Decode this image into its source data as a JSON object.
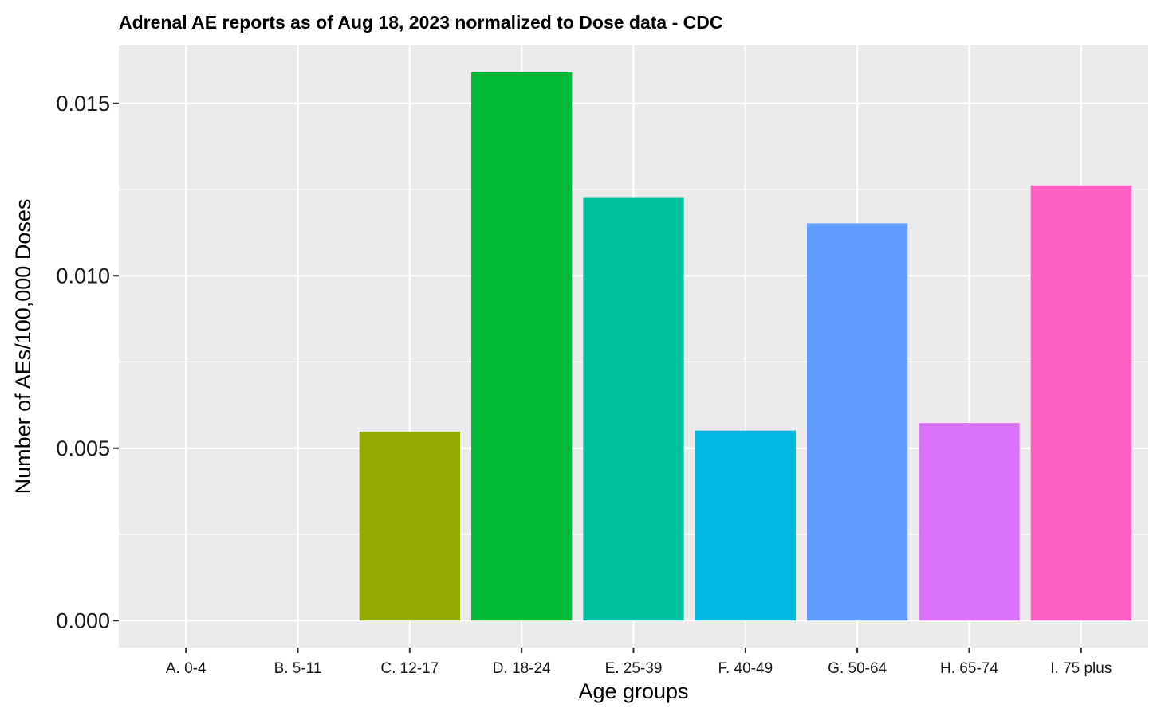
{
  "chart_data": {
    "type": "bar",
    "title": "Adrenal AE reports as of Aug 18, 2023 normalized to Dose data - CDC",
    "xlabel": "Age groups",
    "ylabel": "Number of AEs/100,000 Doses",
    "categories": [
      "A. 0-4",
      "B. 5-11",
      "C. 12-17",
      "D. 18-24",
      "E. 25-39",
      "F. 40-49",
      "G. 50-64",
      "H. 65-74",
      "I. 75 plus"
    ],
    "values": [
      0,
      0,
      0.00548,
      0.0159,
      0.01228,
      0.00551,
      0.01152,
      0.00573,
      0.01262
    ],
    "colors": [
      "#F8766D",
      "#D39200",
      "#93AA00",
      "#00BA38",
      "#00C19F",
      "#00B9E3",
      "#619CFF",
      "#DB72FB",
      "#FF61C3"
    ],
    "yticks": [
      0.0,
      0.005,
      0.01,
      0.015
    ],
    "ytick_labels": [
      "0.000",
      "0.005",
      "0.010",
      "0.015"
    ],
    "ylim": [
      -0.00078,
      0.01668
    ],
    "grid": true,
    "panel_background": "#EBEBEB",
    "grid_color": "#FFFFFF",
    "legend": "none"
  }
}
